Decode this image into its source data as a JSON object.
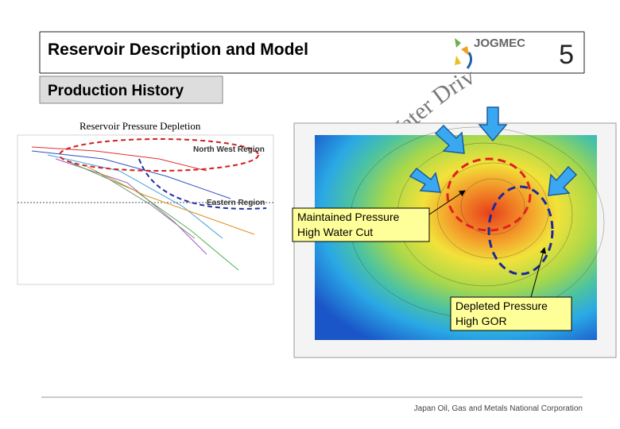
{
  "header": {
    "title": "Reservoir Description and Model",
    "logo": "JOGMEC",
    "page_number": "5"
  },
  "section": "Production History",
  "annotation": "Water Drive",
  "left_chart": {
    "title": "Reservoir Pressure Depletion",
    "labels": [
      "North West Region",
      "Eastern Region"
    ]
  },
  "map": {
    "callouts": [
      {
        "lines": [
          "Maintained Pressure",
          "High Water Cut"
        ]
      },
      {
        "lines": [
          "Depleted Pressure",
          "High GOR"
        ]
      }
    ]
  },
  "footer": "Japan Oil, Gas and Metals National Corporation"
}
